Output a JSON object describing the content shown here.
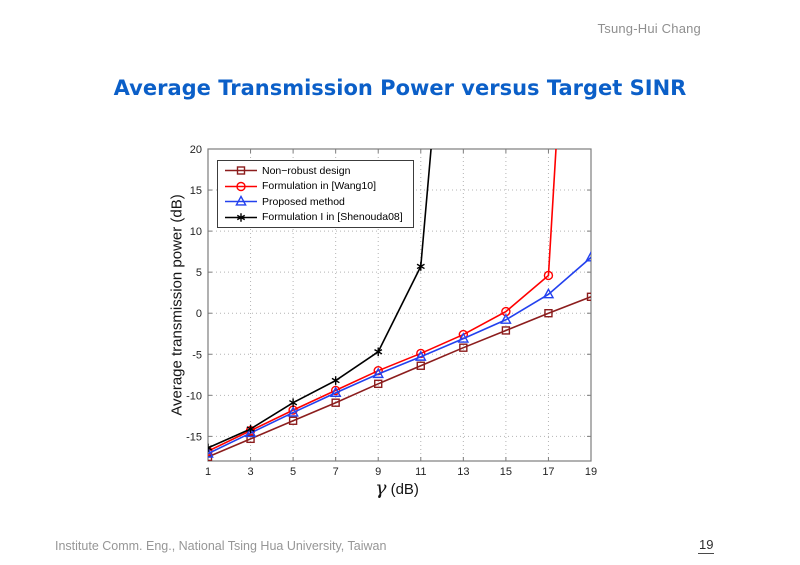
{
  "header": {
    "author": "Tsung-Hui Chang"
  },
  "title": {
    "text": "Average Transmission Power versus Target SINR",
    "color": "#0b5fc8"
  },
  "footer": {
    "affiliation": "Institute Comm. Eng., National Tsing Hua University, Taiwan",
    "page_number": "19"
  },
  "chart_data": {
    "type": "line",
    "title": "Average Transmission Power versus Target SINR",
    "xlabel": "γ (dB)",
    "xlabel_symbol": "γ",
    "xlabel_unit": " (dB)",
    "ylabel": "Average transmission power (dB)",
    "xlim": [
      1,
      19
    ],
    "ylim": [
      -18,
      20
    ],
    "xticks": [
      1,
      3,
      5,
      7,
      9,
      11,
      13,
      15,
      17,
      19
    ],
    "yticks": [
      -15,
      -10,
      -5,
      0,
      5,
      10,
      15,
      20
    ],
    "grid": true,
    "grid_style": "dotted",
    "legend_position": "top-left",
    "axis_color": "#7d7d7d",
    "grid_color": "#b4b4b4",
    "series": [
      {
        "name": "Non−robust design",
        "color": "#8c1d1d",
        "marker": "square",
        "x": [
          1,
          3,
          5,
          7,
          9,
          11,
          13,
          15,
          17,
          19
        ],
        "y": [
          -17.5,
          -15.3,
          -13.1,
          -10.9,
          -8.6,
          -6.4,
          -4.2,
          -2.1,
          0.0,
          2.0
        ]
      },
      {
        "name": "Formulation in [Wang10]",
        "color": "#ff0000",
        "marker": "circle",
        "x": [
          1,
          3,
          5,
          7,
          9,
          11,
          13,
          15,
          17
        ],
        "y": [
          -16.8,
          -14.3,
          -11.8,
          -9.4,
          -7.0,
          -4.9,
          -2.6,
          0.2,
          4.6
        ],
        "line_exit": [
          17.4,
          22
        ]
      },
      {
        "name": "Proposed method",
        "color": "#2341ee",
        "marker": "triangle",
        "x": [
          1,
          3,
          5,
          7,
          9,
          11,
          13,
          15,
          17,
          19
        ],
        "y": [
          -17.1,
          -14.6,
          -12.1,
          -9.7,
          -7.4,
          -5.3,
          -3.1,
          -0.8,
          2.3,
          6.8
        ]
      },
      {
        "name": "Formulation I in [Shenouda08]",
        "color": "#000000",
        "marker": "star",
        "x": [
          1,
          3,
          5,
          7,
          9,
          11
        ],
        "y": [
          -16.4,
          -14.1,
          -10.9,
          -8.2,
          -4.7,
          5.7
        ],
        "line_exit": [
          11.55,
          22
        ]
      }
    ]
  }
}
